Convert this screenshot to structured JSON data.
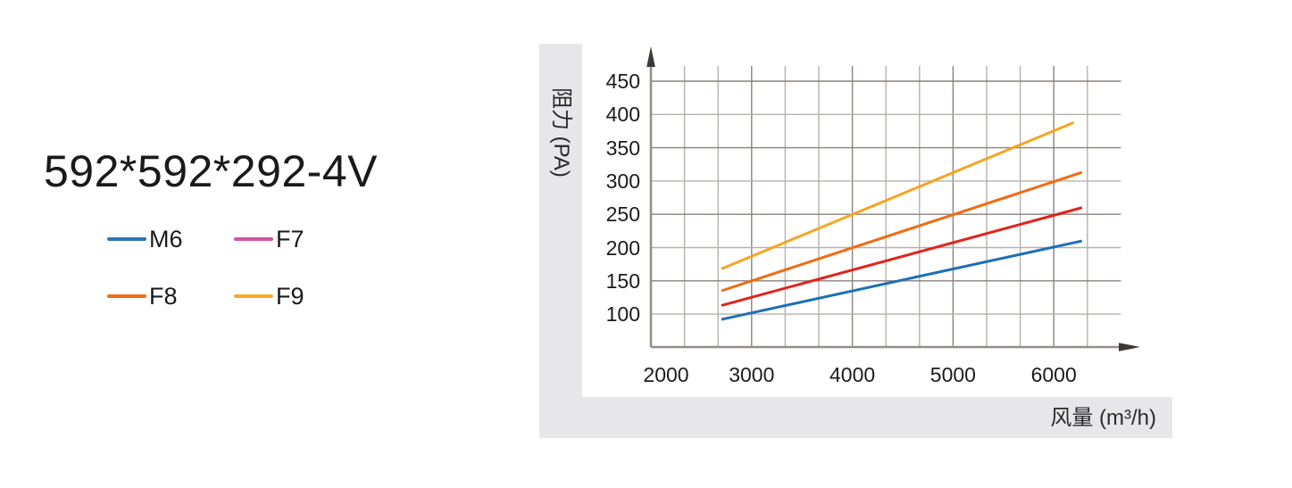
{
  "product": {
    "title": "592*592*292-4V"
  },
  "legend": [
    {
      "label": "M6",
      "color": "#2b74b8"
    },
    {
      "label": "F7",
      "color": "#d6539e"
    },
    {
      "label": "F8",
      "color": "#ee6d15"
    },
    {
      "label": "F9",
      "color": "#f7a929"
    }
  ],
  "chart_data": {
    "type": "line",
    "title": "592*592*292-4V",
    "xlabel": "风量 (m³/h)",
    "ylabel": "阻力 (PA)",
    "x_ticks": [
      2000,
      3000,
      4000,
      5000,
      6000
    ],
    "y_ticks": [
      450,
      400,
      350,
      300,
      250,
      200,
      150,
      100
    ],
    "xlim": [
      2000,
      6670
    ],
    "ylim": [
      45,
      510
    ],
    "grid": true,
    "legend_position": "outside-left",
    "series": [
      {
        "name": "M6",
        "line_color": "#1e6fb8",
        "points": [
          [
            2700,
            92
          ],
          [
            6280,
            210
          ]
        ]
      },
      {
        "name": "F7",
        "line_color": "#e2231a",
        "points": [
          [
            2700,
            113
          ],
          [
            6280,
            260
          ]
        ]
      },
      {
        "name": "F8",
        "line_color": "#ee6c13",
        "points": [
          [
            2700,
            135
          ],
          [
            6280,
            313
          ]
        ]
      },
      {
        "name": "F9",
        "line_color": "#f7a522",
        "points": [
          [
            2700,
            168
          ],
          [
            6200,
            388
          ]
        ]
      }
    ],
    "colors": {
      "grid_major": "#8a817c",
      "grid_minor": "#b7b0ac",
      "axis": "#968e89",
      "arrow": "#3d3936",
      "panel_bg": "#e7e7e9",
      "plot_bg": "#ffffff"
    }
  }
}
